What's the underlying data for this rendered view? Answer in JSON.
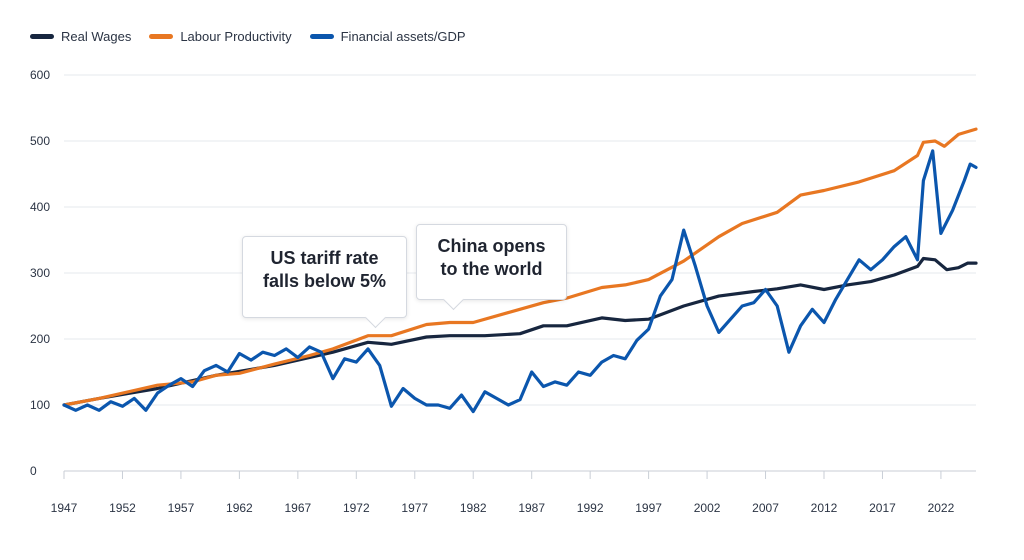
{
  "chart_data": {
    "type": "line",
    "title": "",
    "xlabel": "",
    "ylabel": "",
    "xlim": [
      1947,
      2025
    ],
    "ylim": [
      0,
      600
    ],
    "yticks": [
      0,
      100,
      200,
      300,
      400,
      500,
      600
    ],
    "xticks": [
      "1947",
      "1952",
      "1957",
      "1962",
      "1967",
      "1972",
      "1977",
      "1982",
      "1987",
      "1992",
      "1997",
      "2002",
      "2007",
      "2012",
      "2017",
      "2022"
    ],
    "grid": true,
    "legend_position": "top-left",
    "series": [
      {
        "name": "Real Wages",
        "color": "#17263f",
        "points": [
          [
            1947,
            100
          ],
          [
            1950,
            110
          ],
          [
            1955,
            125
          ],
          [
            1960,
            145
          ],
          [
            1965,
            160
          ],
          [
            1970,
            180
          ],
          [
            1973,
            195
          ],
          [
            1975,
            192
          ],
          [
            1978,
            203
          ],
          [
            1980,
            205
          ],
          [
            1983,
            205
          ],
          [
            1986,
            208
          ],
          [
            1988,
            220
          ],
          [
            1990,
            220
          ],
          [
            1993,
            232
          ],
          [
            1995,
            228
          ],
          [
            1997,
            230
          ],
          [
            2000,
            250
          ],
          [
            2003,
            265
          ],
          [
            2006,
            272
          ],
          [
            2008,
            276
          ],
          [
            2010,
            282
          ],
          [
            2012,
            275
          ],
          [
            2014,
            282
          ],
          [
            2016,
            287
          ],
          [
            2018,
            297
          ],
          [
            2020,
            310
          ],
          [
            2020.5,
            322
          ],
          [
            2021.5,
            320
          ],
          [
            2022.5,
            305
          ],
          [
            2023.5,
            308
          ],
          [
            2024.3,
            315
          ],
          [
            2025,
            315
          ]
        ]
      },
      {
        "name": "Labour Productivity",
        "color": "#e87722",
        "points": [
          [
            1947,
            100
          ],
          [
            1950,
            110
          ],
          [
            1955,
            130
          ],
          [
            1958,
            135
          ],
          [
            1960,
            145
          ],
          [
            1962,
            148
          ],
          [
            1965,
            162
          ],
          [
            1968,
            175
          ],
          [
            1970,
            185
          ],
          [
            1973,
            205
          ],
          [
            1975,
            205
          ],
          [
            1978,
            222
          ],
          [
            1980,
            225
          ],
          [
            1982,
            225
          ],
          [
            1985,
            240
          ],
          [
            1988,
            255
          ],
          [
            1990,
            262
          ],
          [
            1993,
            278
          ],
          [
            1995,
            282
          ],
          [
            1997,
            290
          ],
          [
            2000,
            318
          ],
          [
            2003,
            355
          ],
          [
            2005,
            375
          ],
          [
            2008,
            392
          ],
          [
            2010,
            418
          ],
          [
            2012,
            425
          ],
          [
            2015,
            438
          ],
          [
            2018,
            455
          ],
          [
            2020,
            478
          ],
          [
            2020.5,
            498
          ],
          [
            2021.5,
            500
          ],
          [
            2022.3,
            492
          ],
          [
            2023.5,
            510
          ],
          [
            2025,
            518
          ]
        ]
      },
      {
        "name": "Financial assets/GDP",
        "color": "#0b56ad",
        "points": [
          [
            1947,
            100
          ],
          [
            1948,
            92
          ],
          [
            1949,
            100
          ],
          [
            1950,
            92
          ],
          [
            1951,
            105
          ],
          [
            1952,
            98
          ],
          [
            1953,
            110
          ],
          [
            1954,
            92
          ],
          [
            1955,
            118
          ],
          [
            1956,
            130
          ],
          [
            1957,
            140
          ],
          [
            1958,
            128
          ],
          [
            1959,
            152
          ],
          [
            1960,
            160
          ],
          [
            1961,
            150
          ],
          [
            1962,
            178
          ],
          [
            1963,
            168
          ],
          [
            1964,
            180
          ],
          [
            1965,
            175
          ],
          [
            1966,
            185
          ],
          [
            1967,
            172
          ],
          [
            1968,
            188
          ],
          [
            1969,
            180
          ],
          [
            1970,
            140
          ],
          [
            1971,
            170
          ],
          [
            1972,
            165
          ],
          [
            1973,
            185
          ],
          [
            1974,
            160
          ],
          [
            1975,
            98
          ],
          [
            1976,
            125
          ],
          [
            1977,
            110
          ],
          [
            1978,
            100
          ],
          [
            1979,
            100
          ],
          [
            1980,
            95
          ],
          [
            1981,
            115
          ],
          [
            1982,
            90
          ],
          [
            1983,
            120
          ],
          [
            1984,
            110
          ],
          [
            1985,
            100
          ],
          [
            1986,
            108
          ],
          [
            1987,
            150
          ],
          [
            1988,
            128
          ],
          [
            1989,
            135
          ],
          [
            1990,
            130
          ],
          [
            1991,
            150
          ],
          [
            1992,
            145
          ],
          [
            1993,
            165
          ],
          [
            1994,
            175
          ],
          [
            1995,
            170
          ],
          [
            1996,
            198
          ],
          [
            1997,
            215
          ],
          [
            1998,
            265
          ],
          [
            1999,
            290
          ],
          [
            2000,
            365
          ],
          [
            2001,
            310
          ],
          [
            2002,
            250
          ],
          [
            2003,
            210
          ],
          [
            2004,
            230
          ],
          [
            2005,
            250
          ],
          [
            2006,
            255
          ],
          [
            2007,
            275
          ],
          [
            2008,
            250
          ],
          [
            2009,
            180
          ],
          [
            2010,
            220
          ],
          [
            2011,
            245
          ],
          [
            2012,
            225
          ],
          [
            2013,
            260
          ],
          [
            2014,
            290
          ],
          [
            2015,
            320
          ],
          [
            2016,
            305
          ],
          [
            2017,
            320
          ],
          [
            2018,
            340
          ],
          [
            2019,
            355
          ],
          [
            2020,
            320
          ],
          [
            2020.5,
            440
          ],
          [
            2021.3,
            485
          ],
          [
            2022,
            360
          ],
          [
            2023,
            395
          ],
          [
            2024,
            440
          ],
          [
            2024.5,
            465
          ],
          [
            2025,
            460
          ]
        ]
      }
    ],
    "annotations": [
      {
        "text_line1": "US tariff rate",
        "text_line2": "falls below 5%",
        "x": 1974.5
      },
      {
        "text_line1": "China opens",
        "text_line2": "to the world",
        "x": 1979.5
      }
    ]
  }
}
